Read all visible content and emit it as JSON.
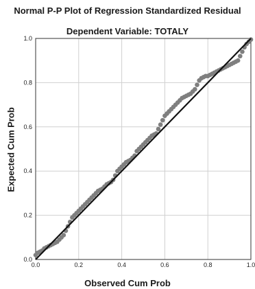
{
  "chart_data": {
    "type": "scatter",
    "title": "Normal P-P Plot of Regression Standardized Residual",
    "subtitle": "Dependent Variable: TOTALY",
    "xlabel": "Observed Cum Prob",
    "ylabel": "Expected Cum Prob",
    "xlim": [
      0,
      1
    ],
    "ylim": [
      0,
      1
    ],
    "xticks": [
      "0.0",
      "0.2",
      "0.4",
      "0.6",
      "0.8",
      "1.0"
    ],
    "yticks": [
      "0.0",
      "0.2",
      "0.4",
      "0.6",
      "0.8",
      "1.0"
    ],
    "grid": true,
    "reference_line": {
      "x": [
        0,
        1
      ],
      "y": [
        0,
        1
      ]
    },
    "points": {
      "x": [
        0.0,
        0.01,
        0.02,
        0.03,
        0.04,
        0.05,
        0.06,
        0.07,
        0.08,
        0.09,
        0.1,
        0.11,
        0.12,
        0.13,
        0.14,
        0.15,
        0.16,
        0.17,
        0.18,
        0.19,
        0.2,
        0.21,
        0.22,
        0.23,
        0.24,
        0.25,
        0.26,
        0.27,
        0.28,
        0.29,
        0.3,
        0.31,
        0.32,
        0.33,
        0.34,
        0.35,
        0.36,
        0.37,
        0.38,
        0.39,
        0.4,
        0.41,
        0.42,
        0.43,
        0.44,
        0.45,
        0.46,
        0.47,
        0.48,
        0.49,
        0.5,
        0.51,
        0.52,
        0.53,
        0.54,
        0.55,
        0.56,
        0.57,
        0.58,
        0.59,
        0.6,
        0.61,
        0.62,
        0.63,
        0.64,
        0.65,
        0.66,
        0.67,
        0.68,
        0.69,
        0.7,
        0.71,
        0.72,
        0.73,
        0.74,
        0.75,
        0.76,
        0.77,
        0.78,
        0.79,
        0.8,
        0.81,
        0.82,
        0.83,
        0.84,
        0.85,
        0.86,
        0.87,
        0.88,
        0.89,
        0.9,
        0.91,
        0.92,
        0.93,
        0.94,
        0.95,
        0.96,
        0.97,
        0.98,
        0.99,
        1.0
      ],
      "y": [
        0.02,
        0.03,
        0.035,
        0.04,
        0.05,
        0.055,
        0.06,
        0.065,
        0.07,
        0.075,
        0.08,
        0.09,
        0.1,
        0.11,
        0.13,
        0.15,
        0.17,
        0.19,
        0.2,
        0.21,
        0.22,
        0.23,
        0.24,
        0.25,
        0.26,
        0.27,
        0.28,
        0.29,
        0.3,
        0.31,
        0.315,
        0.32,
        0.33,
        0.34,
        0.345,
        0.35,
        0.36,
        0.38,
        0.4,
        0.41,
        0.42,
        0.43,
        0.44,
        0.445,
        0.45,
        0.46,
        0.47,
        0.49,
        0.5,
        0.51,
        0.52,
        0.53,
        0.54,
        0.55,
        0.56,
        0.565,
        0.57,
        0.59,
        0.61,
        0.63,
        0.65,
        0.66,
        0.67,
        0.68,
        0.69,
        0.7,
        0.71,
        0.72,
        0.73,
        0.735,
        0.74,
        0.745,
        0.75,
        0.76,
        0.77,
        0.79,
        0.81,
        0.82,
        0.825,
        0.83,
        0.83,
        0.835,
        0.84,
        0.845,
        0.85,
        0.855,
        0.86,
        0.865,
        0.87,
        0.875,
        0.88,
        0.885,
        0.89,
        0.895,
        0.9,
        0.92,
        0.94,
        0.96,
        0.975,
        0.985,
        0.995
      ]
    },
    "colors": {
      "points": "#7f7f7f",
      "line": "#111111",
      "grid": "#d0d0d0"
    }
  }
}
